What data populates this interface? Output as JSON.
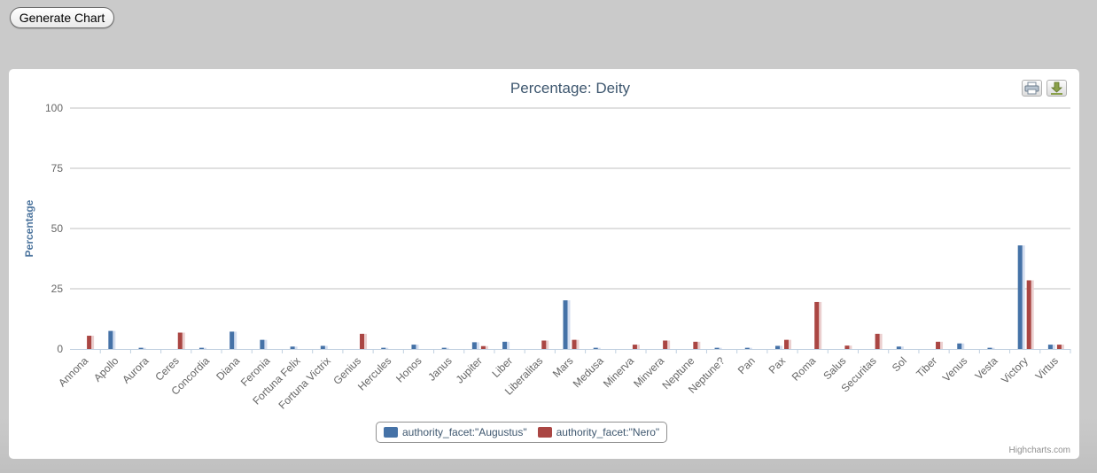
{
  "toolbar": {
    "generate_label": "Generate Chart"
  },
  "export": {
    "print_icon": "printer-icon",
    "download_icon": "download-icon"
  },
  "credits": "Highcharts.com",
  "colors": {
    "augustus": "#4572a7",
    "nero": "#aa4643",
    "axis_title": "#4d759e",
    "title": "#3e576f",
    "grid": "#c0c0c0"
  },
  "chart_data": {
    "type": "bar",
    "title": "Percentage: Deity",
    "ylabel": "Percentage",
    "xlabel": "",
    "ylim": [
      0,
      100
    ],
    "yticks": [
      0,
      25,
      50,
      75,
      100
    ],
    "grid": true,
    "legend_position": "bottom-center",
    "categories": [
      "Annona",
      "Apollo",
      "Aurora",
      "Ceres",
      "Concordia",
      "Diana",
      "Feronia",
      "Fortuna Felix",
      "Fortuna Victrix",
      "Genius",
      "Hercules",
      "Honos",
      "Janus",
      "Jupiter",
      "Liber",
      "Liberalitas",
      "Mars",
      "Medusa",
      "Minerva",
      "Minvera",
      "Neptune",
      "Neptune?",
      "Pan",
      "Pax",
      "Roma",
      "Salus",
      "Securitas",
      "Sol",
      "Tiber",
      "Venus",
      "Vesta",
      "Victory",
      "Virtus"
    ],
    "series": [
      {
        "name": "authority_facet:\"Augustus\"",
        "values": [
          0,
          7.5,
          0.5,
          0,
          0.5,
          7.2,
          3.8,
          1.0,
          1.3,
          0,
          0.5,
          1.8,
          0.5,
          2.8,
          3.0,
          0,
          20.2,
          0.5,
          0,
          0,
          0,
          0.5,
          0.5,
          1.3,
          0,
          0,
          0,
          1.0,
          0,
          2.3,
          0.5,
          43.0,
          1.8
        ]
      },
      {
        "name": "authority_facet:\"Nero\"",
        "values": [
          5.5,
          0,
          0,
          6.8,
          0,
          0,
          0,
          0,
          0,
          6.3,
          0,
          0,
          0,
          1.2,
          0,
          3.5,
          3.8,
          0,
          1.8,
          3.5,
          3.0,
          0,
          0,
          3.8,
          19.5,
          1.4,
          6.3,
          0,
          3.0,
          0,
          0,
          28.5,
          1.8
        ]
      }
    ]
  }
}
